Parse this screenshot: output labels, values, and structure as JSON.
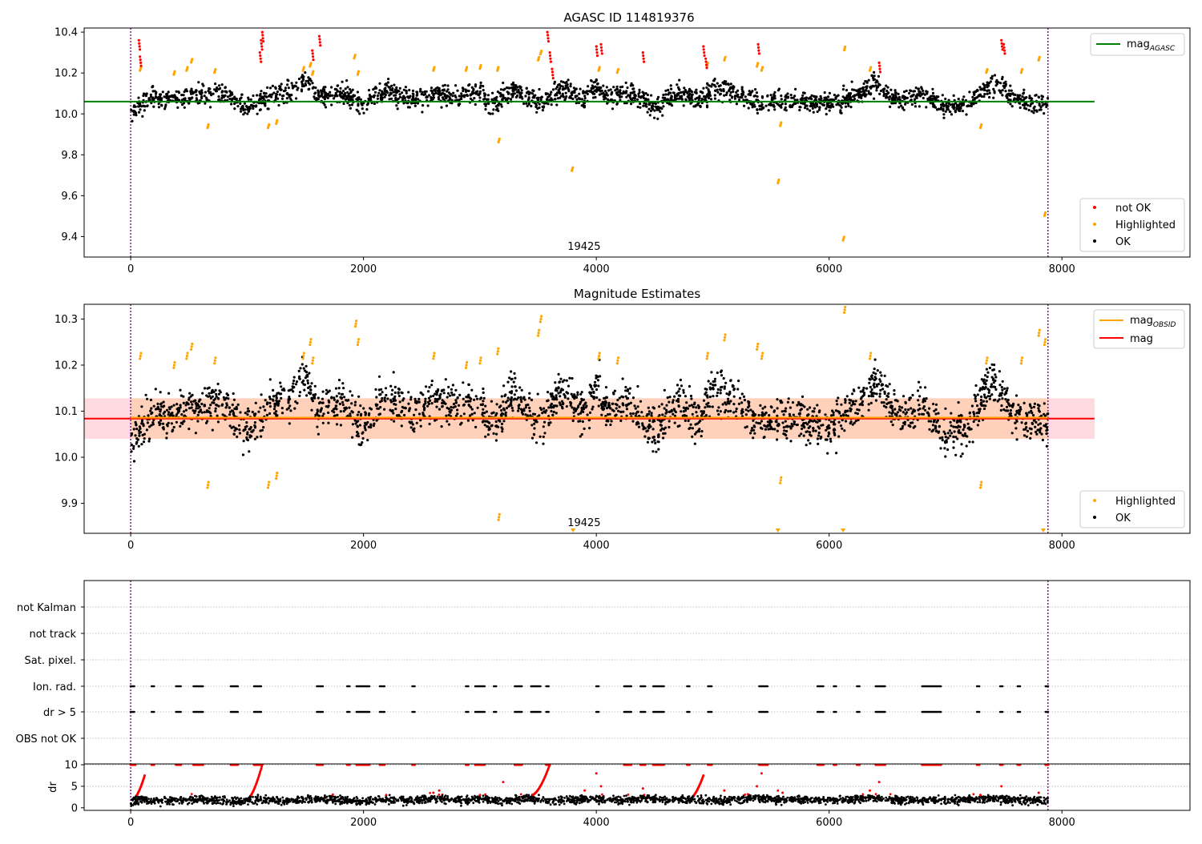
{
  "chart_data": [
    {
      "id": "p1",
      "type": "scatter",
      "title": "AGASC ID 114819376",
      "xlim": [
        -400,
        9100
      ],
      "ylim": [
        9.3,
        10.42
      ],
      "xticks": [
        0,
        2000,
        4000,
        6000,
        8000
      ],
      "xtick_labels": [
        "0",
        "2000",
        "4000",
        "6000",
        "8000"
      ],
      "yticks": [
        9.4,
        9.6,
        9.8,
        10.0,
        10.2,
        10.4
      ],
      "ytick_labels": [
        "9.4",
        "9.6",
        "9.8",
        "10.0",
        "10.2",
        "10.4"
      ],
      "obsid_label": "19425",
      "obsid_label_x": 3950,
      "obs_boundaries": [
        0,
        7880
      ],
      "mag_line": {
        "value": 10.06,
        "x_range": [
          -400,
          8280
        ],
        "color": "#008000",
        "label": "mag",
        "label_sub": "AGASC"
      },
      "legend_scatter": [
        {
          "label": "not OK",
          "color": "#ff0000"
        },
        {
          "label": "Highlighted",
          "color": "#ffa500"
        },
        {
          "label": "OK",
          "color": "#000000"
        }
      ],
      "ok_trend": [
        [
          0,
          10.02
        ],
        [
          200,
          10.08
        ],
        [
          400,
          10.07
        ],
        [
          600,
          10.1
        ],
        [
          800,
          10.1
        ],
        [
          1000,
          10.03
        ],
        [
          1200,
          10.09
        ],
        [
          1400,
          10.11
        ],
        [
          1500,
          10.17
        ],
        [
          1600,
          10.08
        ],
        [
          1800,
          10.1
        ],
        [
          2000,
          10.05
        ],
        [
          2200,
          10.12
        ],
        [
          2400,
          10.07
        ],
        [
          2600,
          10.1
        ],
        [
          2800,
          10.09
        ],
        [
          3000,
          10.1
        ],
        [
          3100,
          10.04
        ],
        [
          3300,
          10.12
        ],
        [
          3500,
          10.05
        ],
        [
          3700,
          10.12
        ],
        [
          3900,
          10.08
        ],
        [
          4000,
          10.14
        ],
        [
          4100,
          10.08
        ],
        [
          4300,
          10.1
        ],
        [
          4500,
          10.03
        ],
        [
          4700,
          10.1
        ],
        [
          4900,
          10.06
        ],
        [
          5000,
          10.13
        ],
        [
          5200,
          10.1
        ],
        [
          5400,
          10.05
        ],
        [
          5600,
          10.07
        ],
        [
          5800,
          10.06
        ],
        [
          6000,
          10.05
        ],
        [
          6200,
          10.08
        ],
        [
          6400,
          10.15
        ],
        [
          6600,
          10.06
        ],
        [
          6800,
          10.1
        ],
        [
          7000,
          10.03
        ],
        [
          7200,
          10.05
        ],
        [
          7400,
          10.15
        ],
        [
          7600,
          10.07
        ],
        [
          7880,
          10.05
        ]
      ],
      "ok_spread": 0.055,
      "highlighted_points": [
        [
          80,
          10.22
        ],
        [
          370,
          10.2
        ],
        [
          480,
          10.22
        ],
        [
          520,
          10.26
        ],
        [
          660,
          9.94
        ],
        [
          720,
          10.21
        ],
        [
          1180,
          9.94
        ],
        [
          1250,
          9.96
        ],
        [
          1480,
          10.22
        ],
        [
          1540,
          10.24
        ],
        [
          1560,
          10.2
        ],
        [
          1920,
          10.28
        ],
        [
          1950,
          10.2
        ],
        [
          2600,
          10.22
        ],
        [
          2880,
          10.22
        ],
        [
          3000,
          10.23
        ],
        [
          3150,
          10.22
        ],
        [
          3160,
          9.87
        ],
        [
          3500,
          10.27
        ],
        [
          3520,
          10.3
        ],
        [
          3790,
          9.73
        ],
        [
          4020,
          10.22
        ],
        [
          4180,
          10.21
        ],
        [
          4950,
          10.24
        ],
        [
          5100,
          10.27
        ],
        [
          5380,
          10.24
        ],
        [
          5420,
          10.22
        ],
        [
          5560,
          9.67
        ],
        [
          5580,
          9.95
        ],
        [
          6120,
          9.39
        ],
        [
          6130,
          10.32
        ],
        [
          6350,
          10.22
        ],
        [
          7300,
          9.94
        ],
        [
          7350,
          10.21
        ],
        [
          7650,
          10.21
        ],
        [
          7800,
          10.27
        ],
        [
          7850,
          9.51
        ]
      ],
      "notok_points": [
        [
          70,
          10.36
        ],
        [
          80,
          10.28
        ],
        [
          1110,
          10.3
        ],
        [
          1120,
          10.36
        ],
        [
          1130,
          10.4
        ],
        [
          1560,
          10.31
        ],
        [
          1620,
          10.38
        ],
        [
          3580,
          10.4
        ],
        [
          3600,
          10.3
        ],
        [
          3620,
          10.22
        ],
        [
          4000,
          10.33
        ],
        [
          4040,
          10.34
        ],
        [
          4400,
          10.3
        ],
        [
          4920,
          10.33
        ],
        [
          4940,
          10.27
        ],
        [
          5390,
          10.34
        ],
        [
          6430,
          10.25
        ],
        [
          7480,
          10.36
        ],
        [
          7500,
          10.34
        ]
      ]
    },
    {
      "id": "p2",
      "type": "scatter",
      "title": "Magnitude Estimates",
      "xlim": [
        -400,
        9100
      ],
      "ylim": [
        9.835,
        10.332
      ],
      "xticks": [
        0,
        2000,
        4000,
        6000,
        8000
      ],
      "xtick_labels": [
        "0",
        "2000",
        "4000",
        "6000",
        "8000"
      ],
      "yticks": [
        9.9,
        10.0,
        10.1,
        10.2,
        10.3
      ],
      "ytick_labels": [
        "9.9",
        "10.0",
        "10.1",
        "10.2",
        "10.3"
      ],
      "obsid_label": "19425",
      "obsid_label_x": 3950,
      "obs_boundaries": [
        0,
        7880
      ],
      "band": {
        "low": 10.04,
        "high": 10.128,
        "x_range": [
          -400,
          8280
        ]
      },
      "obsid_line": {
        "value": 10.086,
        "x_range": [
          0,
          7880
        ],
        "color": "#ffa500",
        "label": "mag",
        "label_sub": "OBSID"
      },
      "mag_line": {
        "value": 10.084,
        "x_range": [
          -400,
          8280
        ],
        "color": "#ff0000",
        "label": "mag"
      },
      "legend_scatter": [
        {
          "label": "Highlighted",
          "color": "#ffa500"
        },
        {
          "label": "OK",
          "color": "#000000"
        }
      ],
      "ok_spread": 0.05,
      "highlighted_points": [
        [
          80,
          10.22
        ],
        [
          370,
          10.2
        ],
        [
          480,
          10.22
        ],
        [
          520,
          10.24
        ],
        [
          660,
          9.94
        ],
        [
          720,
          10.21
        ],
        [
          1180,
          9.94
        ],
        [
          1250,
          9.96
        ],
        [
          1480,
          10.22
        ],
        [
          1540,
          10.25
        ],
        [
          1560,
          10.21
        ],
        [
          1930,
          10.29
        ],
        [
          1950,
          10.25
        ],
        [
          2600,
          10.22
        ],
        [
          2880,
          10.2
        ],
        [
          3000,
          10.21
        ],
        [
          3150,
          10.23
        ],
        [
          3160,
          9.87
        ],
        [
          3500,
          10.27
        ],
        [
          3520,
          10.3
        ],
        [
          4020,
          10.22
        ],
        [
          4180,
          10.21
        ],
        [
          4950,
          10.22
        ],
        [
          5100,
          10.26
        ],
        [
          5380,
          10.24
        ],
        [
          5420,
          10.22
        ],
        [
          5580,
          9.95
        ],
        [
          6130,
          10.32
        ],
        [
          6350,
          10.22
        ],
        [
          7300,
          9.94
        ],
        [
          7350,
          10.21
        ],
        [
          7650,
          10.21
        ],
        [
          7800,
          10.27
        ],
        [
          7850,
          10.25
        ]
      ],
      "below_markers_x": [
        3800,
        5560,
        6120,
        7840
      ]
    },
    {
      "id": "p3",
      "type": "scatter",
      "xlim": [
        -400,
        9100
      ],
      "obs_boundaries": [
        0,
        7880
      ],
      "flag_rows": [
        "not Kalman",
        "not track",
        "Sat. pixel.",
        "Ion. rad.",
        "dr > 5",
        "OBS not OK"
      ],
      "ion_rad_clusters": [
        [
          0,
          30
        ],
        [
          180,
          200
        ],
        [
          390,
          430
        ],
        [
          540,
          620
        ],
        [
          860,
          920
        ],
        [
          1060,
          1120
        ],
        [
          1600,
          1650
        ],
        [
          1860,
          1880
        ],
        [
          1940,
          2050
        ],
        [
          2140,
          2180
        ],
        [
          2420,
          2440
        ],
        [
          2880,
          2900
        ],
        [
          2960,
          3040
        ],
        [
          3120,
          3140
        ],
        [
          3300,
          3360
        ],
        [
          3440,
          3520
        ],
        [
          3570,
          3590
        ],
        [
          4000,
          4020
        ],
        [
          4240,
          4300
        ],
        [
          4380,
          4420
        ],
        [
          4490,
          4580
        ],
        [
          4780,
          4800
        ],
        [
          4960,
          4990
        ],
        [
          5400,
          5470
        ],
        [
          5900,
          5950
        ],
        [
          6040,
          6060
        ],
        [
          6240,
          6260
        ],
        [
          6400,
          6480
        ],
        [
          6800,
          6960
        ],
        [
          7270,
          7290
        ],
        [
          7470,
          7490
        ],
        [
          7620,
          7640
        ],
        [
          7860,
          7880
        ]
      ],
      "dr_trend": [
        [
          0,
          1.2
        ],
        [
          100,
          2
        ],
        [
          300,
          1.5
        ],
        [
          500,
          2
        ],
        [
          700,
          1.8
        ],
        [
          900,
          1.5
        ],
        [
          1100,
          2
        ],
        [
          1300,
          1.5
        ],
        [
          1500,
          2
        ],
        [
          1800,
          1.8
        ],
        [
          2000,
          1.4
        ],
        [
          2200,
          2
        ],
        [
          2400,
          1.6
        ],
        [
          2600,
          2.2
        ],
        [
          2800,
          1.8
        ],
        [
          3000,
          2
        ],
        [
          3200,
          1.6
        ],
        [
          3400,
          2.2
        ],
        [
          3600,
          1.5
        ],
        [
          3800,
          1.8
        ],
        [
          4000,
          2
        ],
        [
          4200,
          1.6
        ],
        [
          4400,
          2.2
        ],
        [
          4600,
          1.8
        ],
        [
          4800,
          2
        ],
        [
          5000,
          1.6
        ],
        [
          5200,
          2.1
        ],
        [
          5400,
          2.3
        ],
        [
          5600,
          1.7
        ],
        [
          5800,
          2
        ],
        [
          6000,
          1.8
        ],
        [
          6200,
          2
        ],
        [
          6400,
          2.3
        ],
        [
          6600,
          1.8
        ],
        [
          6800,
          1.7
        ],
        [
          7000,
          1.6
        ],
        [
          7200,
          2
        ],
        [
          7400,
          2.2
        ],
        [
          7600,
          1.8
        ],
        [
          7880,
          1.5
        ]
      ],
      "dr": {
        "ylabel": "dr",
        "ylim": [
          -0.6,
          10.2
        ],
        "yticks": [
          0,
          5,
          10
        ],
        "ytick_labels": [
          "0",
          "5",
          "10"
        ],
        "xticks": [
          0,
          2000,
          4000,
          6000,
          8000
        ],
        "xtick_labels": [
          "0",
          "2000",
          "4000",
          "6000",
          "8000"
        ],
        "ramps": [
          [
            20,
            120,
            2,
            7.5
          ],
          [
            1000,
            1130,
            2,
            10
          ],
          [
            3450,
            3600,
            3,
            10
          ],
          [
            4800,
            4920,
            2,
            7.5
          ]
        ],
        "top_clusters": [
          [
            0,
            40
          ],
          [
            180,
            200
          ],
          [
            390,
            430
          ],
          [
            540,
            620
          ],
          [
            860,
            920
          ],
          [
            1060,
            1120
          ],
          [
            1600,
            1650
          ],
          [
            1860,
            1880
          ],
          [
            1940,
            2050
          ],
          [
            2140,
            2180
          ],
          [
            2420,
            2440
          ],
          [
            2880,
            2900
          ],
          [
            2960,
            3040
          ],
          [
            3300,
            3360
          ],
          [
            3570,
            3590
          ],
          [
            4240,
            4300
          ],
          [
            4380,
            4420
          ],
          [
            4490,
            4580
          ],
          [
            4780,
            4800
          ],
          [
            4960,
            4990
          ],
          [
            5400,
            5470
          ],
          [
            5900,
            5950
          ],
          [
            6040,
            6060
          ],
          [
            6240,
            6260
          ],
          [
            6400,
            6480
          ],
          [
            6800,
            6960
          ],
          [
            7270,
            7290
          ],
          [
            7470,
            7490
          ],
          [
            7620,
            7640
          ],
          [
            7860,
            7880
          ]
        ],
        "scatter_red": [
          [
            2600,
            3.5
          ],
          [
            2650,
            4
          ],
          [
            3000,
            3
          ],
          [
            3200,
            6
          ],
          [
            3900,
            4
          ],
          [
            4000,
            8
          ],
          [
            4040,
            5
          ],
          [
            4400,
            4.5
          ],
          [
            5100,
            4
          ],
          [
            5380,
            5
          ],
          [
            5420,
            8
          ],
          [
            5560,
            4
          ],
          [
            5600,
            3.5
          ],
          [
            6350,
            4
          ],
          [
            6430,
            6
          ],
          [
            7300,
            3
          ],
          [
            7480,
            5
          ],
          [
            7800,
            3.5
          ]
        ],
        "scatter_threshold_color": "#ff0000",
        "below_color": "#000000"
      }
    }
  ]
}
